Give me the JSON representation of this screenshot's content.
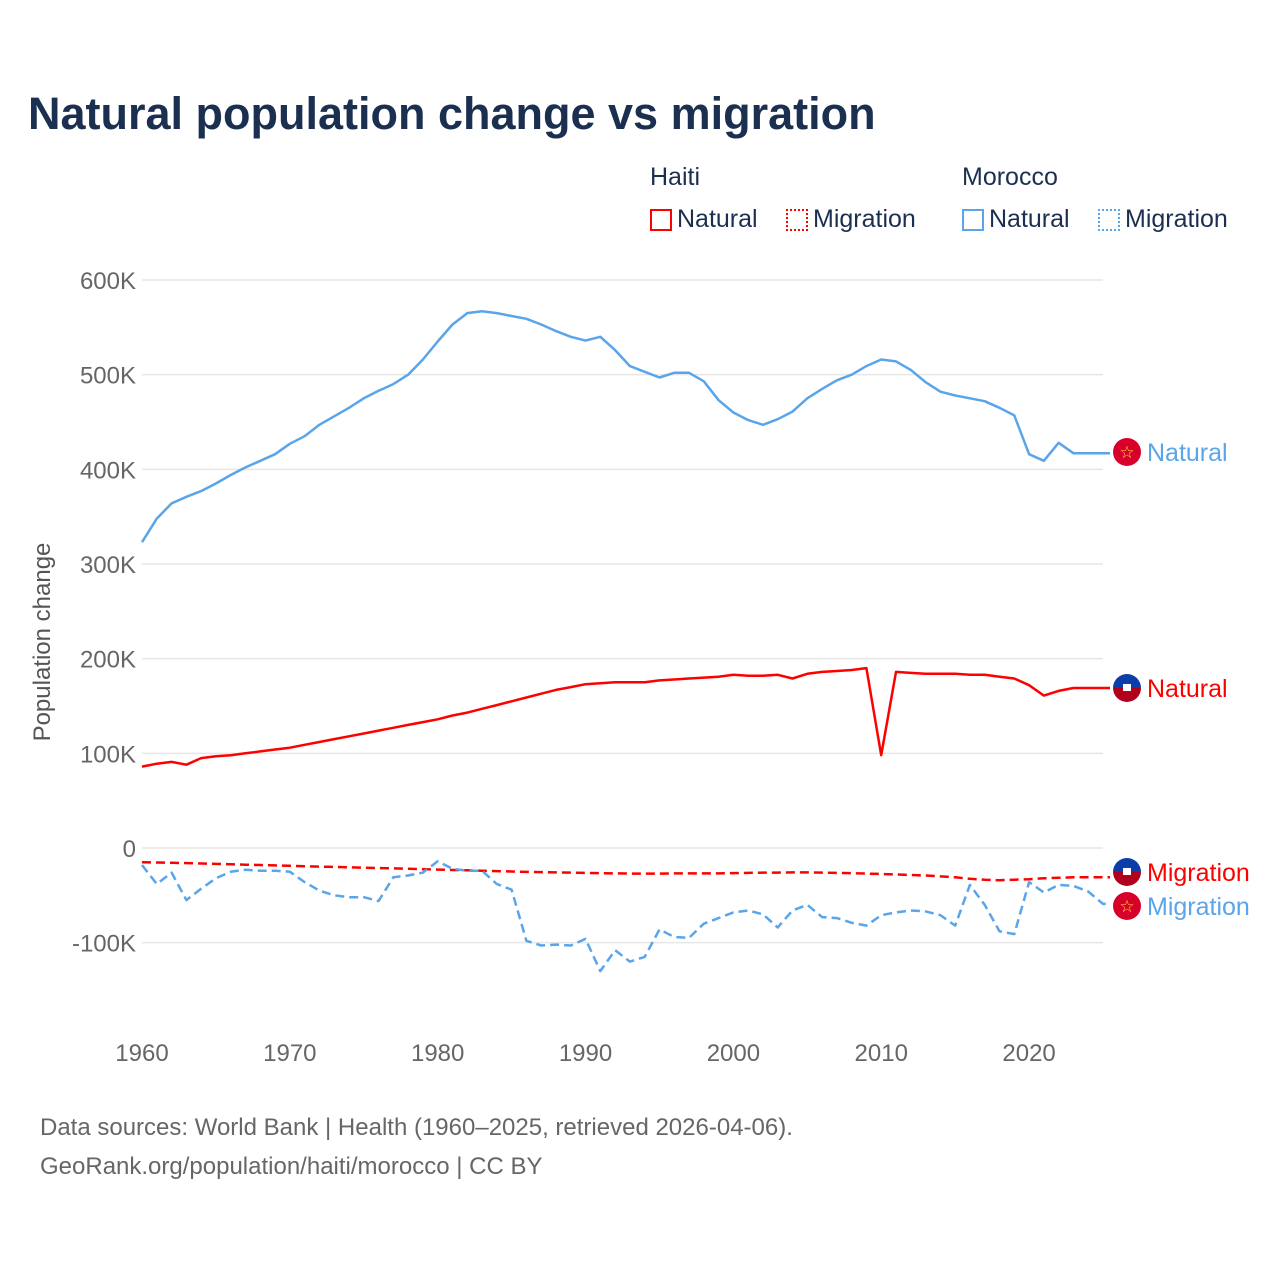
{
  "title": "Natural population change vs migration",
  "legend": {
    "groups": [
      {
        "name": "Haiti",
        "color": "#ff0000",
        "items": [
          "Natural",
          "Migration"
        ]
      },
      {
        "name": "Morocco",
        "color": "#5aa5ea",
        "items": [
          "Natural",
          "Migration"
        ]
      }
    ]
  },
  "footer": {
    "line1": "Data sources: World Bank | Health (1960–2025, retrieved 2026-04-06).",
    "line2": "GeoRank.org/population/haiti/morocco | CC BY"
  },
  "chart_data": {
    "type": "line",
    "title": "Natural population change vs migration",
    "xlabel": "",
    "ylabel": "Population change",
    "xlim": [
      1960,
      2025
    ],
    "ylim": [
      -150000,
      600000
    ],
    "yticks": [
      600000,
      500000,
      400000,
      300000,
      200000,
      100000,
      0,
      -100000
    ],
    "ytick_labels": [
      "600K",
      "500K",
      "400K",
      "300K",
      "200K",
      "100K",
      "0",
      "-100K"
    ],
    "xticks": [
      1960,
      1970,
      1980,
      1990,
      2000,
      2010,
      2020
    ],
    "xtick_labels": [
      "1960",
      "1970",
      "1980",
      "1990",
      "2000",
      "2010",
      "2020"
    ],
    "grid": true,
    "x_start": 1960,
    "series": [
      {
        "name": "Morocco Natural",
        "label": "Natural",
        "color": "#5aa5ea",
        "dash": false,
        "flag": "morocco",
        "values": [
          323000,
          348000,
          364000,
          371000,
          377000,
          385000,
          394000,
          402000,
          409000,
          416000,
          427000,
          435000,
          447000,
          456000,
          465000,
          475000,
          483000,
          490000,
          500000,
          516000,
          535000,
          553000,
          565000,
          567000,
          565000,
          562000,
          559000,
          553000,
          546000,
          540000,
          536000,
          540000,
          526000,
          509000,
          503000,
          497000,
          502000,
          502000,
          493000,
          473000,
          460000,
          452000,
          447000,
          453000,
          461000,
          475000,
          485000,
          494000,
          500000,
          509000,
          516000,
          514000,
          505000,
          492000,
          482000,
          478000,
          475000,
          472000,
          465000,
          457000,
          416000,
          409000,
          428000,
          417000,
          417000,
          417000
        ]
      },
      {
        "name": "Haiti Natural",
        "label": "Natural",
        "color": "#ff0000",
        "dash": false,
        "flag": "haiti",
        "values": [
          86000,
          89000,
          91000,
          88000,
          95000,
          97000,
          98000,
          100000,
          102000,
          104000,
          106000,
          109000,
          112000,
          115000,
          118000,
          121000,
          124000,
          127000,
          130000,
          133000,
          136000,
          140000,
          143000,
          147000,
          151000,
          155000,
          159000,
          163000,
          167000,
          170000,
          173000,
          174000,
          175000,
          175000,
          175000,
          177000,
          178000,
          179000,
          180000,
          181000,
          183000,
          182000,
          182000,
          183000,
          179000,
          184000,
          186000,
          187000,
          188000,
          190000,
          98000,
          186000,
          185000,
          184000,
          184000,
          184000,
          183000,
          183000,
          181000,
          179000,
          172000,
          161000,
          166000,
          169000,
          169000,
          169000
        ]
      },
      {
        "name": "Haiti Migration",
        "label": "Migration",
        "color": "#ff0000",
        "dash": true,
        "flag": "haiti",
        "values": [
          -15000,
          -15300,
          -15600,
          -16000,
          -16400,
          -16800,
          -17200,
          -17600,
          -18000,
          -18400,
          -18800,
          -19200,
          -19600,
          -20000,
          -20400,
          -20800,
          -21200,
          -21600,
          -22000,
          -22400,
          -22800,
          -23200,
          -23600,
          -24000,
          -24400,
          -24800,
          -25200,
          -25500,
          -25800,
          -26000,
          -26300,
          -26600,
          -26800,
          -27000,
          -27000,
          -27000,
          -26800,
          -26800,
          -26800,
          -26800,
          -26500,
          -26300,
          -26000,
          -26000,
          -25800,
          -25800,
          -26000,
          -26300,
          -26600,
          -27000,
          -27500,
          -28000,
          -28500,
          -29000,
          -30000,
          -31000,
          -32500,
          -33500,
          -34000,
          -33500,
          -33000,
          -32000,
          -31500,
          -31000,
          -31000,
          -31000
        ]
      },
      {
        "name": "Morocco Migration",
        "label": "Migration",
        "color": "#5aa5ea",
        "dash": true,
        "flag": "morocco",
        "values": [
          -18000,
          -38000,
          -26000,
          -55000,
          -43000,
          -32000,
          -25000,
          -23000,
          -24000,
          -24000,
          -25000,
          -36000,
          -45000,
          -50000,
          -52000,
          -52000,
          -56000,
          -31000,
          -29000,
          -26000,
          -14000,
          -22000,
          -24000,
          -24000,
          -38000,
          -44000,
          -98000,
          -103000,
          -102000,
          -103000,
          -96000,
          -130000,
          -108000,
          -120000,
          -115000,
          -86000,
          -94000,
          -95000,
          -80000,
          -74000,
          -68000,
          -66000,
          -70000,
          -84000,
          -66000,
          -60000,
          -73000,
          -74000,
          -79000,
          -82000,
          -71000,
          -68000,
          -66000,
          -67000,
          -71000,
          -82000,
          -39000,
          -60000,
          -88000,
          -91000,
          -36000,
          -47000,
          -39000,
          -40000,
          -46000,
          -59000
        ]
      }
    ]
  }
}
